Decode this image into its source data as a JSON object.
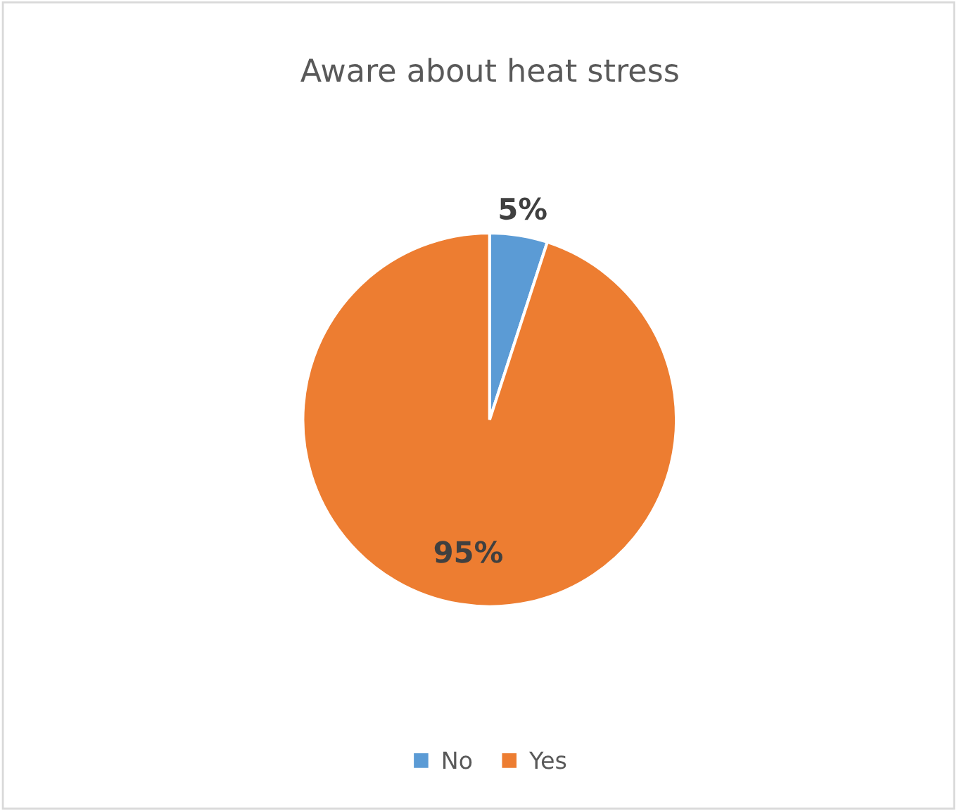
{
  "chart_data": {
    "type": "pie",
    "title": "Aware about heat stress",
    "categories": [
      "No",
      "Yes"
    ],
    "values": [
      5,
      95
    ],
    "colors": [
      "#5b9bd5",
      "#ed7d31"
    ],
    "value_labels": [
      "5%",
      "95%"
    ],
    "legend": "bottom"
  }
}
